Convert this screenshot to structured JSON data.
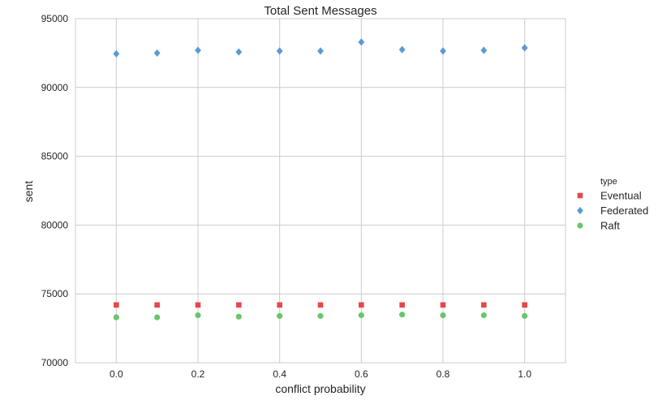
{
  "chart_data": {
    "type": "scatter",
    "title": "Total Sent Messages",
    "xlabel": "conflict probability",
    "ylabel": "sent",
    "xlim": [
      -0.1,
      1.1
    ],
    "ylim": [
      70000,
      95000
    ],
    "xticks": [
      0.0,
      0.2,
      0.4,
      0.6,
      0.8,
      1.0
    ],
    "xtick_labels": [
      "0.0",
      "0.2",
      "0.4",
      "0.6",
      "0.8",
      "1.0"
    ],
    "yticks": [
      70000,
      75000,
      80000,
      85000,
      90000,
      95000
    ],
    "ytick_labels": [
      "70000",
      "75000",
      "80000",
      "85000",
      "90000",
      "95000"
    ],
    "grid": true,
    "legend": {
      "title": "type",
      "placement": "right"
    },
    "x": [
      0.0,
      0.1,
      0.2,
      0.3,
      0.4,
      0.5,
      0.6,
      0.7,
      0.8,
      0.9,
      1.0
    ],
    "series": [
      {
        "name": "Eventual",
        "marker": "square",
        "color": "#e8464b",
        "values": [
          74200,
          74200,
          74200,
          74200,
          74200,
          74200,
          74200,
          74200,
          74200,
          74200,
          74200
        ]
      },
      {
        "name": "Federated",
        "marker": "diamond",
        "color": "#5b9bd5",
        "values": [
          92450,
          92500,
          92700,
          92580,
          92650,
          92650,
          93300,
          92750,
          92650,
          92700,
          92880
        ]
      },
      {
        "name": "Raft",
        "marker": "circle",
        "color": "#6cc46c",
        "values": [
          73300,
          73300,
          73450,
          73350,
          73400,
          73400,
          73450,
          73500,
          73450,
          73450,
          73400
        ]
      }
    ]
  }
}
